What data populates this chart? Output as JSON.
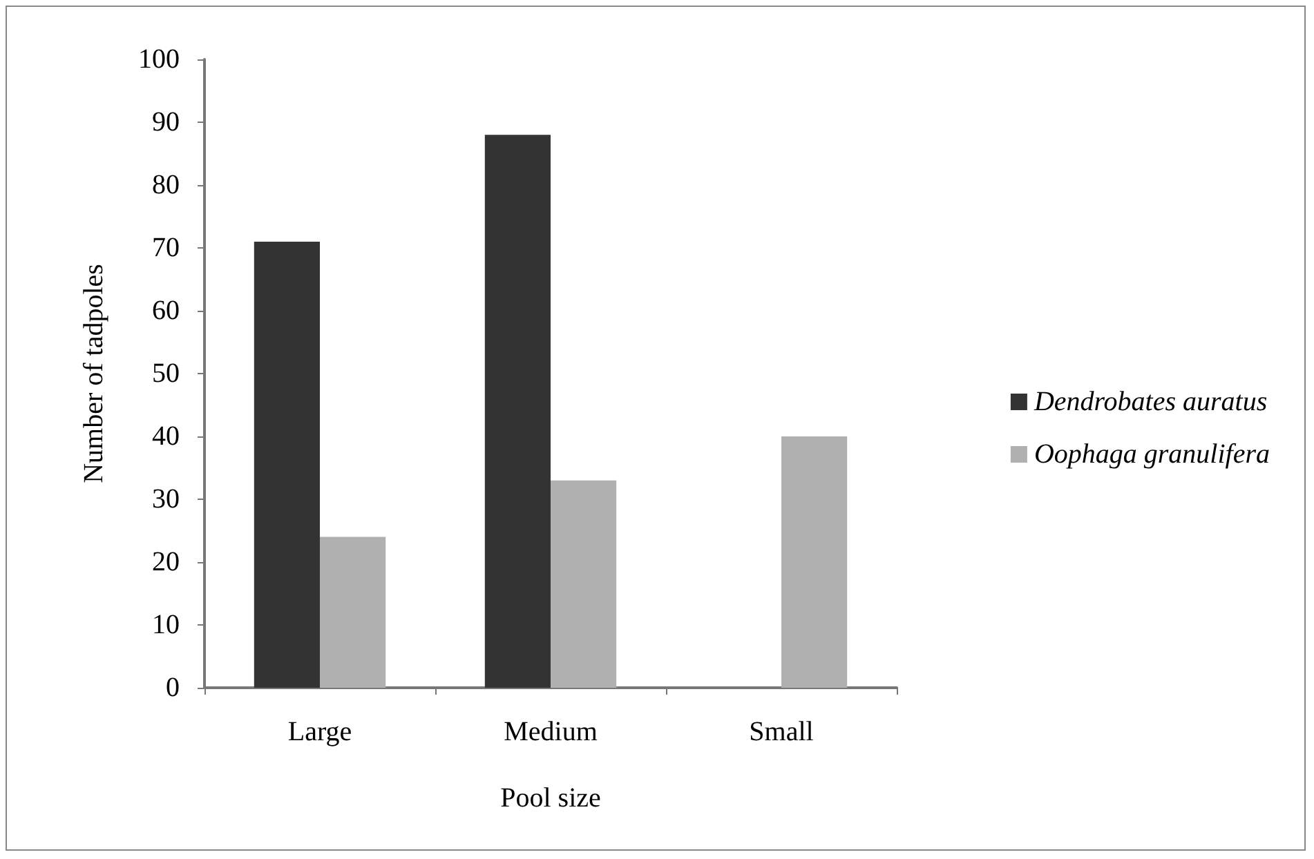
{
  "chart_data": {
    "type": "bar",
    "xlabel": "Pool size",
    "ylabel": "Number of tadpoles",
    "categories": [
      "Large",
      "Medium",
      "Small"
    ],
    "series": [
      {
        "name": "Dendrobates auratus",
        "color": "#333333",
        "values": [
          71,
          88,
          0
        ]
      },
      {
        "name": "Oophaga granulifera",
        "color": "#b0b0b0",
        "values": [
          24,
          33,
          40
        ]
      }
    ],
    "ylim": [
      0,
      100
    ],
    "yticks": [
      0,
      10,
      20,
      30,
      40,
      50,
      60,
      70,
      80,
      90,
      100
    ],
    "grid": false,
    "legend": "right"
  }
}
